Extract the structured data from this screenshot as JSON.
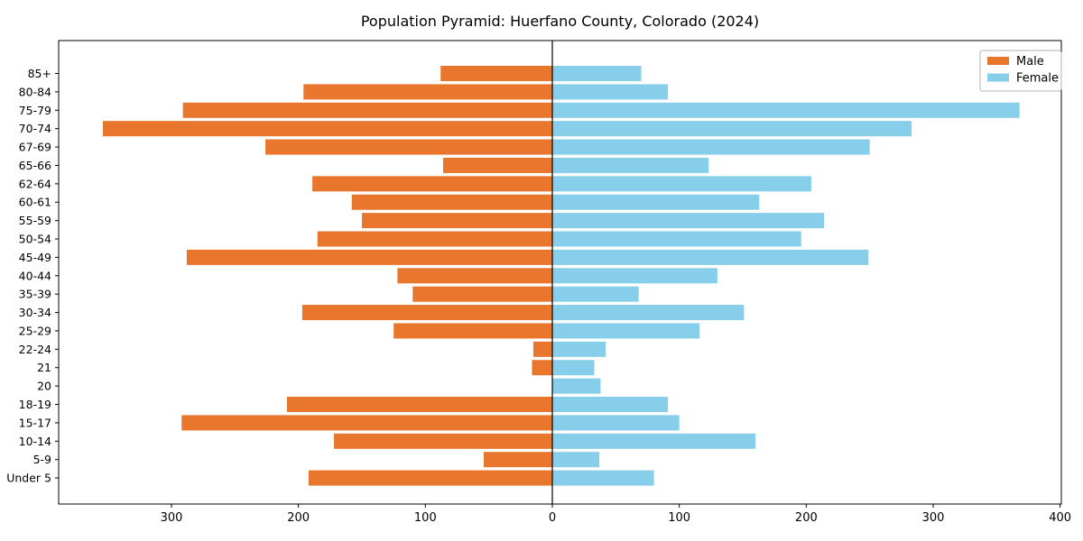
{
  "chart_data": {
    "type": "bar",
    "variant": "population_pyramid",
    "title": "Population Pyramid: Huerfano County, Colorado (2024)",
    "categories": [
      "85+",
      "80-84",
      "75-79",
      "70-74",
      "67-69",
      "65-66",
      "62-64",
      "60-61",
      "55-59",
      "50-54",
      "45-49",
      "40-44",
      "35-39",
      "30-34",
      "25-29",
      "22-24",
      "21",
      "20",
      "18-19",
      "15-17",
      "10-14",
      "5-9",
      "Under 5"
    ],
    "series": [
      {
        "name": "Male",
        "side": "left",
        "color": "#e8762d",
        "values": [
          88,
          196,
          291,
          354,
          226,
          86,
          189,
          158,
          150,
          185,
          288,
          122,
          110,
          197,
          125,
          15,
          16,
          0,
          209,
          292,
          172,
          54,
          192
        ]
      },
      {
        "name": "Female",
        "side": "right",
        "color": "#87ceeb",
        "values": [
          70,
          91,
          368,
          283,
          250,
          123,
          204,
          163,
          214,
          196,
          249,
          130,
          68,
          151,
          116,
          42,
          33,
          38,
          91,
          100,
          160,
          37,
          80
        ]
      }
    ],
    "x_axis": {
      "tick_values": [
        -300,
        -200,
        -100,
        0,
        100,
        200,
        300,
        400
      ],
      "tick_labels": [
        "300",
        "200",
        "100",
        "0",
        "100",
        "200",
        "300",
        "400"
      ],
      "xlim": [
        -390,
        402
      ],
      "grid": false
    },
    "y_axis": {
      "label": ""
    },
    "zero_line": true,
    "legend": {
      "position": "top-right",
      "entries": [
        "Male",
        "Female"
      ]
    },
    "colors": {
      "axis": "#000000",
      "text": "#000000",
      "background": "#ffffff",
      "legend_border": "#b0b0b0"
    }
  }
}
